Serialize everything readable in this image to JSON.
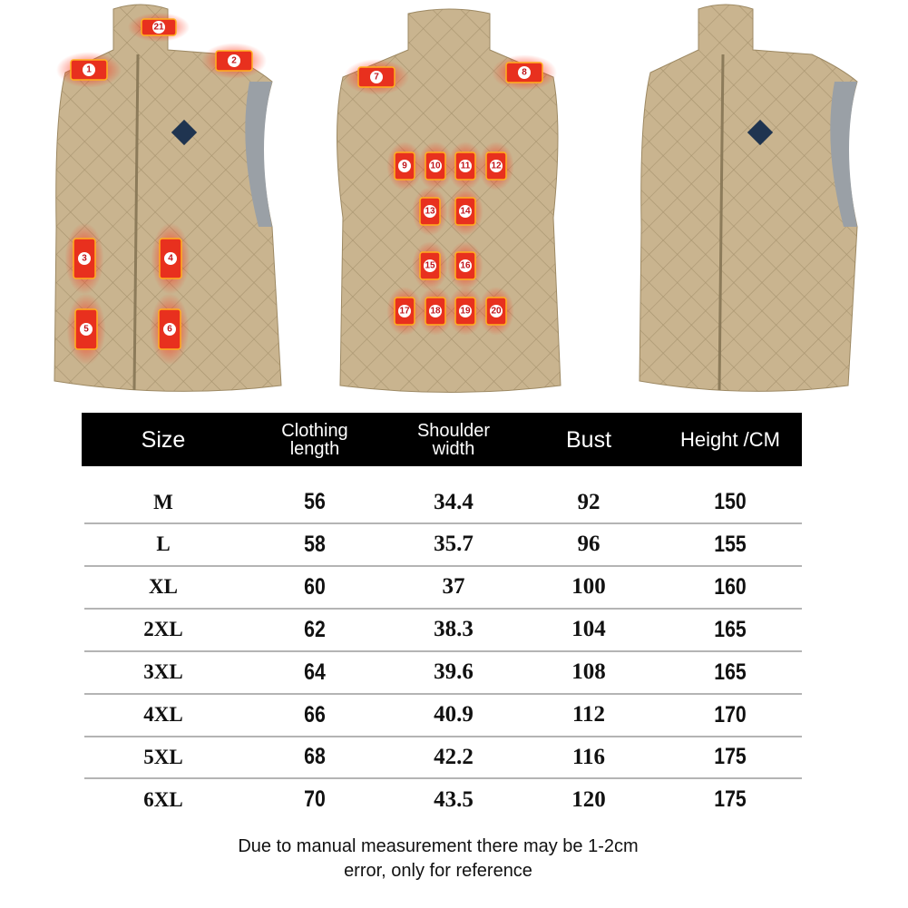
{
  "product": {
    "vest_color": "#c9b48f",
    "pad_color": "#e8301e",
    "heating_zones": [
      "21",
      "1",
      "2",
      "3",
      "4",
      "5",
      "6",
      "7",
      "8",
      "9",
      "10",
      "11",
      "12",
      "13",
      "14",
      "15",
      "16",
      "17",
      "18",
      "19",
      "20"
    ]
  },
  "size_chart": {
    "headers": [
      "Size",
      "Clothing\nlength",
      "Shoulder\nwidth",
      "Bust",
      "Height /CM"
    ],
    "rows": [
      [
        "M",
        "56",
        "34.4",
        "92",
        "150"
      ],
      [
        "L",
        "58",
        "35.7",
        "96",
        "155"
      ],
      [
        "XL",
        "60",
        "37",
        "100",
        "160"
      ],
      [
        "2XL",
        "62",
        "38.3",
        "104",
        "165"
      ],
      [
        "3XL",
        "64",
        "39.6",
        "108",
        "165"
      ],
      [
        "4XL",
        "66",
        "40.9",
        "112",
        "170"
      ],
      [
        "5XL",
        "68",
        "42.2",
        "116",
        "175"
      ],
      [
        "6XL",
        "70",
        "43.5",
        "120",
        "175"
      ]
    ]
  },
  "note": {
    "line1": "Due to manual measurement there may be 1-2cm",
    "line2": "error, only for reference"
  }
}
